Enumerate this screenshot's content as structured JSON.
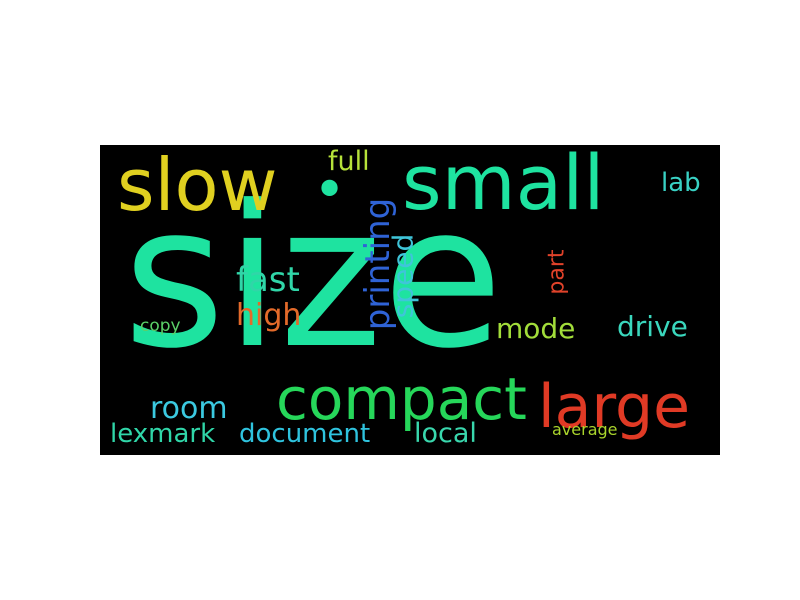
{
  "words": {
    "size": "size",
    "slow": "slow",
    "dot": "•",
    "small": "small",
    "full": "full",
    "lab": "lab",
    "printing": "printing",
    "speed": "speed",
    "part": "part",
    "fast": "fast",
    "high": "high",
    "mode": "mode",
    "drive": "drive",
    "copy": "copy",
    "compact": "compact",
    "large": "large",
    "room": "room",
    "lexmark": "lexmark",
    "document": "document",
    "local": "local",
    "average": "average"
  },
  "colors": {
    "background": "#000000",
    "size": "#1ee3a0",
    "slow": "#e0d020",
    "dot": "#1ee3a0",
    "small": "#1ee3a0",
    "full": "#b6e23a",
    "lab": "#39d1c4",
    "printing": "#2f63d6",
    "speed": "#3fc5d9",
    "part": "#e0422a",
    "fast": "#30d6a8",
    "high": "#e36a2a",
    "mode": "#a2dd3a",
    "drive": "#3ad7bd",
    "copy": "#5bd068",
    "compact": "#26d75a",
    "large": "#e03a25",
    "room": "#3bc9e0",
    "lexmark": "#30d6a8",
    "document": "#2fc3de",
    "local": "#39d7ad",
    "average": "#a9d42c"
  }
}
